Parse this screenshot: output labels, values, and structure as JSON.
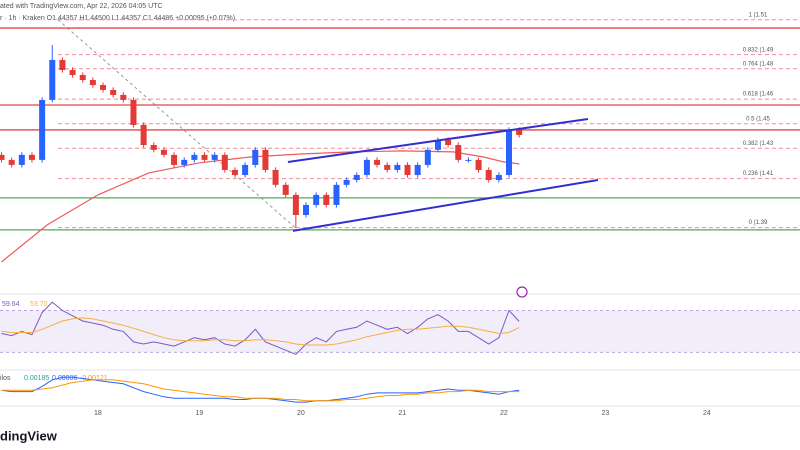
{
  "header": {
    "line1": "ated with TradingView.com, Apr 22, 2026 04:05 UTC",
    "line2": "r · 1h · Kraken  O1.44357 H1.44500 L1.44357 C1.44486 +0.00095 (+0.07%)",
    "brand": "dingView"
  },
  "chart_data": [
    {
      "type": "candlestick",
      "x": [
        17.05,
        17.15,
        17.25,
        17.35,
        17.45,
        17.55,
        17.65,
        17.75,
        17.85,
        17.95,
        18.05,
        18.15,
        18.25,
        18.35,
        18.45,
        18.55,
        18.65,
        18.75,
        18.85,
        18.95,
        19.05,
        19.15,
        19.25,
        19.35,
        19.45,
        19.55,
        19.65,
        19.75,
        19.85,
        19.95,
        20.05,
        20.15,
        20.25,
        20.35,
        20.45,
        20.55,
        20.65,
        20.75,
        20.85,
        20.95,
        21.05,
        21.15,
        21.25,
        21.35,
        21.45,
        21.55,
        21.65,
        21.75,
        21.85,
        21.95,
        22.05,
        22.15
      ],
      "open": [
        1.433,
        1.4301,
        1.4272,
        1.433,
        1.4301,
        1.4647,
        1.4878,
        1.482,
        1.4791,
        1.4762,
        1.4733,
        1.4705,
        1.4676,
        1.4647,
        1.4503,
        1.4387,
        1.4359,
        1.433,
        1.4272,
        1.4301,
        1.433,
        1.4301,
        1.433,
        1.4243,
        1.4214,
        1.4272,
        1.4359,
        1.4243,
        1.4157,
        1.4099,
        1.3983,
        1.4041,
        1.4099,
        1.4041,
        1.4157,
        1.4185,
        1.4214,
        1.4301,
        1.4272,
        1.4243,
        1.4272,
        1.4214,
        1.4272,
        1.4359,
        1.4416,
        1.4387,
        1.4301,
        1.4301,
        1.4243,
        1.4185,
        1.4214,
        1.4474
      ],
      "high": [
        1.4345,
        1.4316,
        1.4345,
        1.4345,
        1.4662,
        1.4964,
        1.4893,
        1.4835,
        1.4806,
        1.4777,
        1.4748,
        1.472,
        1.4691,
        1.4662,
        1.4518,
        1.4402,
        1.4374,
        1.4345,
        1.4316,
        1.4345,
        1.4345,
        1.4345,
        1.4345,
        1.4258,
        1.4287,
        1.4374,
        1.4374,
        1.4258,
        1.4172,
        1.4114,
        1.4056,
        1.4114,
        1.4114,
        1.4172,
        1.42,
        1.4229,
        1.4316,
        1.4316,
        1.4287,
        1.4287,
        1.4287,
        1.4287,
        1.4374,
        1.4431,
        1.4431,
        1.4402,
        1.4316,
        1.4316,
        1.4258,
        1.4229,
        1.4489,
        1.4489
      ],
      "low": [
        1.4286,
        1.4257,
        1.4257,
        1.4286,
        1.4286,
        1.4632,
        1.4805,
        1.4776,
        1.4747,
        1.4718,
        1.469,
        1.4661,
        1.4632,
        1.4488,
        1.4372,
        1.4344,
        1.4315,
        1.4257,
        1.4257,
        1.4286,
        1.4286,
        1.4286,
        1.4228,
        1.4199,
        1.4199,
        1.4257,
        1.4228,
        1.4142,
        1.4084,
        1.3908,
        1.3968,
        1.4026,
        1.4026,
        1.4026,
        1.4142,
        1.417,
        1.4199,
        1.4257,
        1.4228,
        1.4228,
        1.4199,
        1.4199,
        1.4257,
        1.4344,
        1.4372,
        1.4286,
        1.4286,
        1.4228,
        1.417,
        1.417,
        1.4199,
        1.443
      ],
      "close": [
        1.4301,
        1.4272,
        1.433,
        1.4301,
        1.4647,
        1.4878,
        1.482,
        1.4791,
        1.4762,
        1.4733,
        1.4705,
        1.4676,
        1.4647,
        1.4503,
        1.4387,
        1.4359,
        1.433,
        1.4272,
        1.4301,
        1.433,
        1.4301,
        1.433,
        1.4243,
        1.4214,
        1.4272,
        1.4359,
        1.4243,
        1.4157,
        1.4099,
        1.3983,
        1.4041,
        1.4099,
        1.4041,
        1.4157,
        1.4185,
        1.4214,
        1.4301,
        1.4272,
        1.4243,
        1.4272,
        1.4214,
        1.4272,
        1.4359,
        1.4416,
        1.4387,
        1.4301,
        1.4301,
        1.4243,
        1.4185,
        1.4214,
        1.4474,
        1.4445
      ],
      "up_color": "#2962ff",
      "down_color": "#e53935",
      "xlim": [
        17.035,
        24.917
      ],
      "xticks": [
        18,
        19,
        20,
        21,
        22,
        23,
        24
      ],
      "ylim": [
        1.355,
        1.5224
      ],
      "ma": {
        "color": "#f05a5a",
        "x": [
          17.05,
          17.5,
          18.0,
          18.5,
          19.0,
          19.5,
          20.0,
          20.5,
          21.0,
          21.5,
          21.8,
          22.0,
          22.15
        ],
        "values": [
          1.3712,
          1.3926,
          1.4099,
          1.4226,
          1.4284,
          1.4318,
          1.4335,
          1.4347,
          1.4353,
          1.4347,
          1.4318,
          1.4289,
          1.4278
        ]
      },
      "hlines": [
        {
          "color": "#e04848",
          "value": 1.5062
        },
        {
          "color": "#e04848",
          "value": 1.4618
        },
        {
          "color": "#e04848",
          "value": 1.4474
        },
        {
          "color": "#4caf50",
          "value": 1.4082
        },
        {
          "color": "#4caf50",
          "value": 1.3897
        }
      ],
      "trendlines": [
        {
          "color": "#3030d0",
          "x": [
            19.872,
            22.828
          ],
          "values": [
            1.4289,
            1.4537
          ]
        },
        {
          "color": "#3030d0",
          "x": [
            19.922,
            22.927
          ],
          "values": [
            1.3891,
            1.4185
          ]
        }
      ],
      "fib": {
        "color": "#f28b95",
        "x": [
          17.606,
          19.942
        ],
        "values": [
          1.511,
          1.391
        ],
        "levels": [
          1,
          0.832,
          0.764,
          0.618,
          0.5,
          0.382,
          0.236,
          0
        ],
        "level_labels": [
          "1 (1.51",
          "0.832 (1.49",
          "0.764 (1.48",
          "0.618 (1.46",
          "0.5 (1.45",
          "0.382 (1.43",
          "0.236 (1.41",
          "0 (1.39"
        ]
      }
    },
    {
      "type": "line",
      "x": [
        17.05,
        17.15,
        17.25,
        17.35,
        17.45,
        17.55,
        17.65,
        17.75,
        17.85,
        17.95,
        18.05,
        18.15,
        18.25,
        18.35,
        18.45,
        18.55,
        18.65,
        18.75,
        18.85,
        18.95,
        19.05,
        19.15,
        19.25,
        19.35,
        19.45,
        19.55,
        19.65,
        19.75,
        19.85,
        19.95,
        20.05,
        20.15,
        20.25,
        20.35,
        20.45,
        20.55,
        20.65,
        20.75,
        20.85,
        20.95,
        21.05,
        21.15,
        21.25,
        21.35,
        21.45,
        21.55,
        21.65,
        21.75,
        21.85,
        21.95,
        22.05,
        22.15
      ],
      "ylim": [
        15,
        82
      ],
      "band": [
        30,
        70
      ],
      "band_color": "#7e57c2",
      "series": [
        {
          "color": "#7e57c2",
          "label": "59.64",
          "values": [
            48,
            46,
            50,
            47,
            68,
            78,
            70,
            65,
            60,
            58,
            56,
            52,
            50,
            40,
            38,
            40,
            38,
            36,
            40,
            44,
            42,
            44,
            38,
            36,
            42,
            52,
            40,
            36,
            32,
            28,
            38,
            44,
            40,
            50,
            52,
            54,
            60,
            56,
            52,
            54,
            48,
            54,
            62,
            66,
            60,
            50,
            50,
            44,
            38,
            44,
            70,
            59.64
          ]
        },
        {
          "color": "#f5b041",
          "label": "53.70",
          "values": [
            50,
            49,
            49,
            49,
            52,
            56,
            60,
            62,
            63,
            62,
            60,
            58,
            56,
            53,
            50,
            47,
            44,
            42,
            41,
            41,
            41,
            42,
            42,
            41,
            41,
            42,
            42,
            41,
            40,
            38,
            37,
            37,
            37,
            38,
            40,
            42,
            45,
            47,
            49,
            51,
            52,
            52,
            53,
            54,
            55,
            55,
            54,
            52,
            50,
            48,
            49,
            53.7
          ]
        }
      ]
    },
    {
      "type": "line",
      "x": [
        17.05,
        17.15,
        17.25,
        17.35,
        17.45,
        17.55,
        17.65,
        17.75,
        17.85,
        17.95,
        18.05,
        18.15,
        18.25,
        18.35,
        18.45,
        18.55,
        18.65,
        18.75,
        18.85,
        18.95,
        19.05,
        19.15,
        19.25,
        19.35,
        19.45,
        19.55,
        19.65,
        19.75,
        19.85,
        19.95,
        20.05,
        20.15,
        20.25,
        20.35,
        20.45,
        20.55,
        20.65,
        20.75,
        20.85,
        20.95,
        21.05,
        21.15,
        21.25,
        21.35,
        21.45,
        21.55,
        21.65,
        21.75,
        21.85,
        21.95,
        22.05,
        22.15
      ],
      "ylim": [
        -0.01,
        0.016
      ],
      "name_fragment": "ilos",
      "labels": [
        "0.00185",
        "0.00006",
        "-0.00121"
      ],
      "series": [
        {
          "color": "#2962ff",
          "values": [
            0.002,
            0.001,
            0.001,
            0.001,
            0.005,
            0.01,
            0.012,
            0.012,
            0.011,
            0.01,
            0.009,
            0.008,
            0.007,
            0.004,
            0.001,
            -0.001,
            -0.003,
            -0.004,
            -0.004,
            -0.004,
            -0.004,
            -0.004,
            -0.004,
            -0.005,
            -0.005,
            -0.004,
            -0.004,
            -0.005,
            -0.006,
            -0.007,
            -0.007,
            -0.006,
            -0.006,
            -0.005,
            -0.004,
            -0.003,
            -0.001,
            0.0,
            0.0,
            0.0,
            0.0,
            0.0,
            0.001,
            0.002,
            0.003,
            0.002,
            0.002,
            0.001,
            0.0,
            -0.001,
            0.001,
            0.002
          ]
        },
        {
          "color": "#ff9800",
          "values": [
            0.002,
            0.002,
            0.002,
            0.002,
            0.003,
            0.004,
            0.006,
            0.008,
            0.009,
            0.01,
            0.01,
            0.01,
            0.009,
            0.008,
            0.007,
            0.005,
            0.003,
            0.002,
            0.001,
            0.0,
            -0.001,
            -0.002,
            -0.003,
            -0.003,
            -0.004,
            -0.004,
            -0.004,
            -0.004,
            -0.005,
            -0.005,
            -0.006,
            -0.006,
            -0.006,
            -0.006,
            -0.005,
            -0.005,
            -0.004,
            -0.003,
            -0.002,
            -0.002,
            -0.001,
            -0.001,
            0.0,
            0.0,
            0.001,
            0.001,
            0.002,
            0.002,
            0.001,
            0.001,
            0.001,
            0.001
          ]
        }
      ]
    }
  ]
}
